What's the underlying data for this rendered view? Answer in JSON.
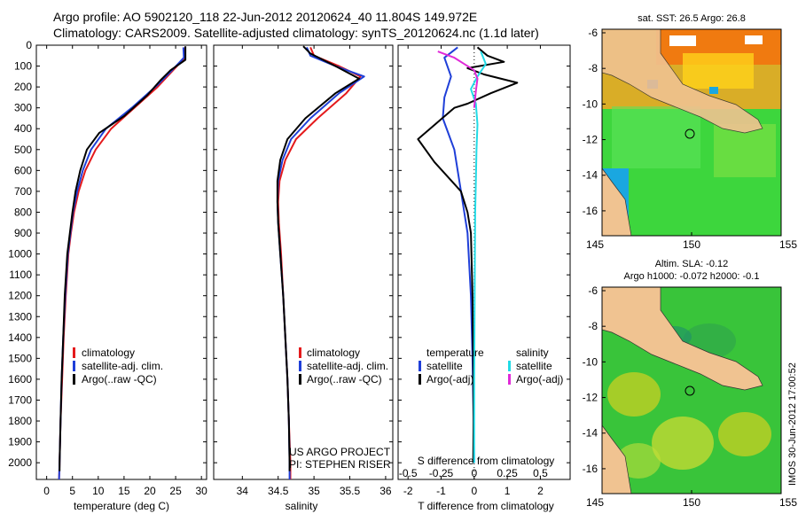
{
  "header": {
    "line1": "Argo profile: AO 5902120_118 22-Jun-2012 20120624_40 11.804S 149.972E",
    "line2": "Climatology: CARS2009. Satellite-adjusted climatology: synTS_20120624.nc (1.1d later)"
  },
  "colors": {
    "climatology": "#e41a1c",
    "satellite": "#1f3fd8",
    "argo": "#000000",
    "sal_satellite": "#22dbe6",
    "sal_argo": "#e02ad8"
  },
  "chart_data": [
    {
      "type": "line",
      "id": "temperature",
      "xlabel": "temperature (deg C)",
      "ylabel": "",
      "xlim": [
        -2,
        31
      ],
      "ylim": [
        0,
        2080
      ],
      "xticks": [
        0,
        5,
        10,
        15,
        20,
        25,
        30
      ],
      "xtick_labels": [
        "0",
        "5",
        "10",
        "15",
        "20",
        "25",
        "30"
      ],
      "yticks": [
        0,
        100,
        200,
        300,
        400,
        500,
        600,
        700,
        800,
        900,
        1000,
        1100,
        1200,
        1300,
        1400,
        1500,
        1600,
        1700,
        1800,
        1900,
        2000
      ],
      "ytick_labels": [
        "0",
        "100",
        "200",
        "300",
        "400",
        "500",
        "600",
        "700",
        "800",
        "900",
        "1000",
        "1100",
        "1200",
        "1300",
        "1400",
        "1500",
        "1600",
        "1700",
        "1800",
        "1900",
        "2000"
      ],
      "legend": [
        "climatology",
        "satellite-adj. clim.",
        "Argo(..raw -QC)"
      ],
      "series": [
        {
          "name": "climatology",
          "color": "#e41a1c",
          "points": [
            [
              26.8,
              10
            ],
            [
              26.8,
              60
            ],
            [
              24.5,
              120
            ],
            [
              21.5,
              200
            ],
            [
              17,
              300
            ],
            [
              12.5,
              400
            ],
            [
              9.5,
              500
            ],
            [
              7.5,
              600
            ],
            [
              6.2,
              700
            ],
            [
              5.3,
              800
            ],
            [
              4.7,
              900
            ],
            [
              4.2,
              1000
            ],
            [
              3.7,
              1200
            ],
            [
              3.3,
              1400
            ],
            [
              3,
              1600
            ],
            [
              2.7,
              1800
            ],
            [
              2.5,
              2000
            ],
            [
              2.4,
              2080
            ]
          ]
        },
        {
          "name": "satellite-adj. clim.",
          "color": "#1f3fd8",
          "points": [
            [
              26.5,
              10
            ],
            [
              26.6,
              60
            ],
            [
              24.3,
              120
            ],
            [
              21.5,
              190
            ],
            [
              16.5,
              300
            ],
            [
              11.5,
              400
            ],
            [
              8.6,
              500
            ],
            [
              7,
              600
            ],
            [
              5.9,
              700
            ],
            [
              5.1,
              800
            ],
            [
              4.6,
              900
            ],
            [
              4.1,
              1000
            ],
            [
              3.6,
              1200
            ],
            [
              3.2,
              1400
            ],
            [
              2.9,
              1600
            ],
            [
              2.7,
              1800
            ],
            [
              2.5,
              2000
            ],
            [
              2.4,
              2080
            ]
          ]
        },
        {
          "name": "Argo(..raw -QC)",
          "color": "#000000",
          "points": [
            [
              26.9,
              5
            ],
            [
              26.9,
              70
            ],
            [
              24,
              120
            ],
            [
              22,
              170
            ],
            [
              19.5,
              240
            ],
            [
              15,
              340
            ],
            [
              10.2,
              420
            ],
            [
              7.8,
              500
            ],
            [
              6.5,
              600
            ],
            [
              5.6,
              700
            ],
            [
              5,
              800
            ],
            [
              4.5,
              900
            ],
            [
              4,
              1000
            ],
            [
              3.5,
              1200
            ],
            [
              3.2,
              1400
            ],
            [
              2.9,
              1600
            ],
            [
              2.7,
              1800
            ],
            [
              2.5,
              2000
            ],
            [
              2.5,
              2040
            ]
          ]
        }
      ]
    },
    {
      "type": "line",
      "id": "salinity",
      "xlabel": "salinity",
      "xlim": [
        33.6,
        36.1
      ],
      "ylim": [
        0,
        2080
      ],
      "xticks": [
        34,
        34.5,
        35,
        35.5,
        36
      ],
      "xtick_labels": [
        "34",
        "34.5",
        "35",
        "35.5",
        "36"
      ],
      "legend": [
        "climatology",
        "satellite-adj. clim.",
        "Argo(..raw -QC)"
      ],
      "annotation": [
        "US ARGO PROJECT",
        "PI: STEPHEN RISER"
      ],
      "series": [
        {
          "name": "climatology",
          "color": "#e41a1c",
          "points": [
            [
              34.95,
              10
            ],
            [
              35,
              50
            ],
            [
              35.35,
              100
            ],
            [
              35.65,
              150
            ],
            [
              35.45,
              230
            ],
            [
              35.05,
              350
            ],
            [
              34.75,
              450
            ],
            [
              34.6,
              550
            ],
            [
              34.52,
              650
            ],
            [
              34.5,
              750
            ],
            [
              34.51,
              850
            ],
            [
              34.54,
              1000
            ],
            [
              34.57,
              1200
            ],
            [
              34.6,
              1400
            ],
            [
              34.63,
              1600
            ],
            [
              34.65,
              1800
            ],
            [
              34.67,
              2000
            ],
            [
              34.67,
              2080
            ]
          ]
        },
        {
          "name": "satellite-adj. clim.",
          "color": "#1f3fd8",
          "points": [
            [
              34.9,
              10
            ],
            [
              34.95,
              50
            ],
            [
              35.3,
              100
            ],
            [
              35.7,
              150
            ],
            [
              35.35,
              230
            ],
            [
              34.95,
              350
            ],
            [
              34.68,
              450
            ],
            [
              34.56,
              550
            ],
            [
              34.5,
              650
            ],
            [
              34.49,
              750
            ],
            [
              34.5,
              850
            ],
            [
              34.53,
              1000
            ],
            [
              34.57,
              1200
            ],
            [
              34.6,
              1400
            ],
            [
              34.63,
              1600
            ],
            [
              34.65,
              1800
            ],
            [
              34.66,
              2000
            ],
            [
              34.66,
              2080
            ]
          ]
        },
        {
          "name": "Argo(..raw -QC)",
          "color": "#000000",
          "points": [
            [
              34.85,
              5
            ],
            [
              34.95,
              40
            ],
            [
              35.3,
              100
            ],
            [
              35.63,
              160
            ],
            [
              35.3,
              230
            ],
            [
              34.88,
              350
            ],
            [
              34.63,
              450
            ],
            [
              34.53,
              550
            ],
            [
              34.49,
              650
            ],
            [
              34.49,
              750
            ],
            [
              34.5,
              850
            ],
            [
              34.53,
              1000
            ],
            [
              34.57,
              1200
            ],
            [
              34.6,
              1400
            ],
            [
              34.63,
              1600
            ],
            [
              34.65,
              1800
            ],
            [
              34.66,
              2000
            ],
            [
              34.66,
              2040
            ]
          ]
        }
      ]
    },
    {
      "type": "line",
      "id": "differences",
      "xlabel": "T difference from climatology",
      "s_axis_label": "S difference from climatology",
      "xlim": [
        -2.3,
        2.9
      ],
      "ylim": [
        0,
        2080
      ],
      "xticks": [
        -2,
        -1,
        0,
        1,
        2
      ],
      "xtick_labels": [
        "-2",
        "-1",
        "0",
        "1",
        "2"
      ],
      "s_ticks": [
        -0.5,
        -0.25,
        0,
        0.25,
        0.5
      ],
      "s_tick_labels": [
        "-0.5",
        "-0.25",
        "0",
        "0.25",
        "0.5"
      ],
      "s_scale": 4,
      "legend_headers": [
        "temperature",
        "salinity"
      ],
      "legend": [
        "satellite",
        "Argo(-adj)",
        "satellite",
        "Argo(-adj)"
      ],
      "series": [
        {
          "name": "temperature satellite",
          "color": "#1f3fd8",
          "points": [
            [
              -0.5,
              10
            ],
            [
              -0.9,
              60
            ],
            [
              -0.7,
              150
            ],
            [
              -0.9,
              250
            ],
            [
              -0.95,
              350
            ],
            [
              -0.6,
              500
            ],
            [
              -0.4,
              700
            ],
            [
              -0.2,
              900
            ],
            [
              -0.1,
              1200
            ],
            [
              -0.05,
              1500
            ],
            [
              -0.02,
              1800
            ],
            [
              0,
              2000
            ]
          ]
        },
        {
          "name": "temperature Argo(-adj)",
          "color": "#000000",
          "points": [
            [
              0.1,
              10
            ],
            [
              0.4,
              50
            ],
            [
              0.9,
              80
            ],
            [
              -0.2,
              110
            ],
            [
              0.3,
              140
            ],
            [
              1.3,
              180
            ],
            [
              0.5,
              230
            ],
            [
              -0.2,
              280
            ],
            [
              -0.6,
              300
            ],
            [
              -1.7,
              450
            ],
            [
              -1.2,
              560
            ],
            [
              -0.4,
              700
            ],
            [
              -0.2,
              800
            ],
            [
              -0.1,
              900
            ],
            [
              -0.05,
              1200
            ],
            [
              -0.03,
              1500
            ],
            [
              -0.02,
              1800
            ],
            [
              -0.03,
              2000
            ]
          ]
        },
        {
          "name": "salinity satellite",
          "color": "#22dbe6",
          "points": [
            [
              0.2,
              30
            ],
            [
              0.35,
              90
            ],
            [
              0.1,
              150
            ],
            [
              -0.1,
              210
            ],
            [
              0.05,
              280
            ],
            [
              0.1,
              380
            ],
            [
              0.07,
              500
            ],
            [
              0.05,
              650
            ],
            [
              0.03,
              800
            ],
            [
              0.02,
              1000
            ],
            [
              0.01,
              1300
            ],
            [
              0,
              1600
            ],
            [
              0,
              2000
            ]
          ]
        },
        {
          "name": "salinity Argo(-adj)",
          "color": "#e02ad8",
          "points": [
            [
              -1.1,
              30
            ],
            [
              -0.6,
              60
            ],
            [
              -0.3,
              90
            ],
            [
              0,
              120
            ],
            [
              0.1,
              160
            ],
            [
              0.05,
              220
            ],
            [
              0,
              300
            ]
          ]
        }
      ]
    }
  ],
  "maps": [
    {
      "title": "sat. SST: 26.5 Argo: 26.8",
      "xticks": [
        "145",
        "150",
        "155"
      ],
      "yticks": [
        "-6",
        "-8",
        "-10",
        "-12",
        "-14",
        "-16"
      ]
    },
    {
      "title": "Altim. SLA: -0.12",
      "subtitle": "Argo h1000: -0.072 h2000: -0.1",
      "xticks": [
        "145",
        "150",
        "155"
      ],
      "yticks": [
        "-6",
        "-8",
        "-10",
        "-12",
        "-14",
        "-16"
      ]
    }
  ],
  "footer": {
    "stamp": "IMOS 30-Jun-2012 17:00:52"
  }
}
